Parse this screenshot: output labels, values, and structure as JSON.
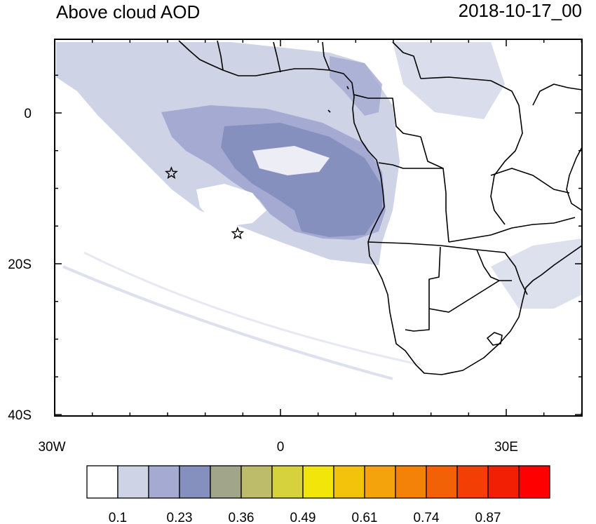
{
  "title_left": "Above cloud AOD",
  "title_right": "2018-10-17_00",
  "axes": {
    "y_ticks": [
      {
        "label": "0",
        "lat": 0
      },
      {
        "label": "20S",
        "lat": -20
      },
      {
        "label": "40S",
        "lat": -40
      }
    ],
    "x_ticks": [
      {
        "label": "30W",
        "lon": -30
      },
      {
        "label": "0",
        "lon": 0
      },
      {
        "label": "30E",
        "lon": 30
      }
    ],
    "minor_lat_step": 5,
    "minor_lon_step": 5
  },
  "markers": [
    {
      "name": "star-1",
      "lon": -14.5,
      "lat": -8
    },
    {
      "name": "star-2",
      "lon": -5.7,
      "lat": -16
    }
  ],
  "colorbar": {
    "colors": [
      "#ffffff",
      "#ced3e6",
      "#a4aad2",
      "#8690be",
      "#a1a58a",
      "#bcbc6a",
      "#d6d23e",
      "#f2e509",
      "#f3c20b",
      "#f4a30c",
      "#f48209",
      "#f36107",
      "#f33e05",
      "#f21f05",
      "#ff0000"
    ],
    "labels": [
      "0.1",
      "0.23",
      "0.36",
      "0.49",
      "0.61",
      "0.74",
      "0.87"
    ]
  },
  "colors": {
    "land_border": "#000000",
    "aod_low": "#ced3e6",
    "aod_mid": "#a4aad2",
    "aod_high": "#8690be"
  }
}
